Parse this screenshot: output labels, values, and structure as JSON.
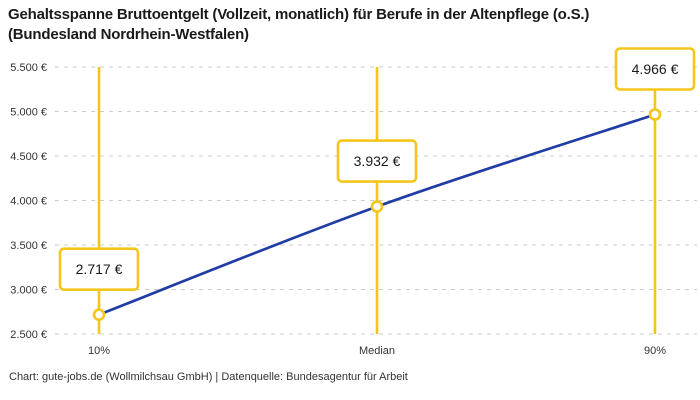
{
  "header": {
    "title_line1": "Gehaltsspanne Bruttoentgelt (Vollzeit, monatlich) für Berufe in der Altenpflege (o.S.)",
    "title_line2": "(Bundesland Nordrhein-Westfalen)"
  },
  "footer": {
    "text": "Chart: gute-jobs.de (Wollmilchsau GmbH) | Datenquelle: Bundesagentur für Arbeit"
  },
  "colors": {
    "accent_yellow": "#F5C51B",
    "line_blue": "#1F3DA4",
    "grid": "#CBCBCB",
    "title_text": "#1A1A1A",
    "tick_text": "#333333",
    "box_fill": "#FFFFFF"
  },
  "chart_data": {
    "type": "line",
    "title": "Gehaltsspanne Bruttoentgelt (Vollzeit, monatlich) für Berufe in der Altenpflege (o.S.) (Bundesland Nordrhein-Westfalen)",
    "categories": [
      "10%",
      "Median",
      "90%"
    ],
    "values": [
      2717,
      3932,
      4966
    ],
    "point_labels": [
      "2.717 €",
      "3.932 €",
      "4.966 €"
    ],
    "ylim": [
      2500,
      5500
    ],
    "yticks": [
      2500,
      3000,
      3500,
      4000,
      4500,
      5000,
      5500
    ],
    "ytick_labels": [
      "2.500 €",
      "3.000 €",
      "3.500 €",
      "4.000 €",
      "4.500 €",
      "5.000 €",
      "5.500 €"
    ],
    "xlabel": "",
    "ylabel": "",
    "grid": "horizontal-dashed",
    "legend": "none",
    "marker_style": "open-circle",
    "vertical_guides": true
  }
}
